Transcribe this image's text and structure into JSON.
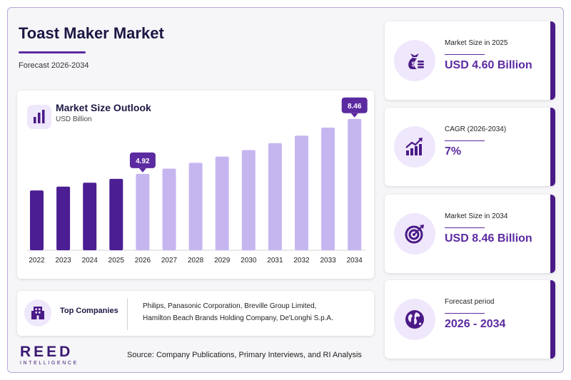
{
  "header": {
    "title": "Toast Maker Market",
    "subtitle": "Forecast 2026-2034"
  },
  "chart_card": {
    "title": "Market Size Outlook",
    "unit": "USD Billion",
    "icon": "bar-chart-icon"
  },
  "chart_data": {
    "type": "bar",
    "title": "Market Size Outlook",
    "ylabel": "USD Billion",
    "categories": [
      "2022",
      "2023",
      "2024",
      "2025",
      "2026",
      "2027",
      "2028",
      "2029",
      "2030",
      "2031",
      "2032",
      "2033",
      "2034"
    ],
    "values": [
      3.85,
      4.1,
      4.35,
      4.6,
      4.92,
      5.26,
      5.63,
      6.03,
      6.45,
      6.9,
      7.38,
      7.9,
      8.46
    ],
    "series_split": {
      "historical_until": "2025"
    },
    "data_labels": [
      {
        "category": "2026",
        "text": "4.92"
      },
      {
        "category": "2034",
        "text": "8.46"
      }
    ],
    "ylim": [
      0,
      9
    ],
    "grid": false,
    "colors": {
      "historical": "#4b1f93",
      "forecast": "#c6b6f0",
      "label_bg": "#5b2aa0"
    }
  },
  "companies": {
    "label": "Top Companies",
    "icon": "building-icon",
    "lines": [
      "Philips, Panasonic Corporation, Breville Group Limited,",
      "Hamilton Beach Brands Holding Company, De'Longhi S.p.A."
    ]
  },
  "stats": [
    {
      "label": "Market Size in 2025",
      "value": "USD 4.60 Billion",
      "icon": "money-bag-icon"
    },
    {
      "label": "CAGR (2026-2034)",
      "value": "7%",
      "icon": "growth-chart-icon"
    },
    {
      "label": "Market Size in 2034",
      "value": "USD 8.46 Billion",
      "icon": "target-icon"
    },
    {
      "label": "Forecast period",
      "value": "2026 - 2034",
      "icon": "globe-icon"
    }
  ],
  "footer": {
    "logo_main": "REED",
    "logo_sub": "INTELLIGENCE",
    "source": "Source: Company Publications, Primary Interviews, and RI Analysis"
  },
  "colors": {
    "accent": "#5b2aa0",
    "dark": "#4a1a86",
    "light": "#efe7fb"
  }
}
